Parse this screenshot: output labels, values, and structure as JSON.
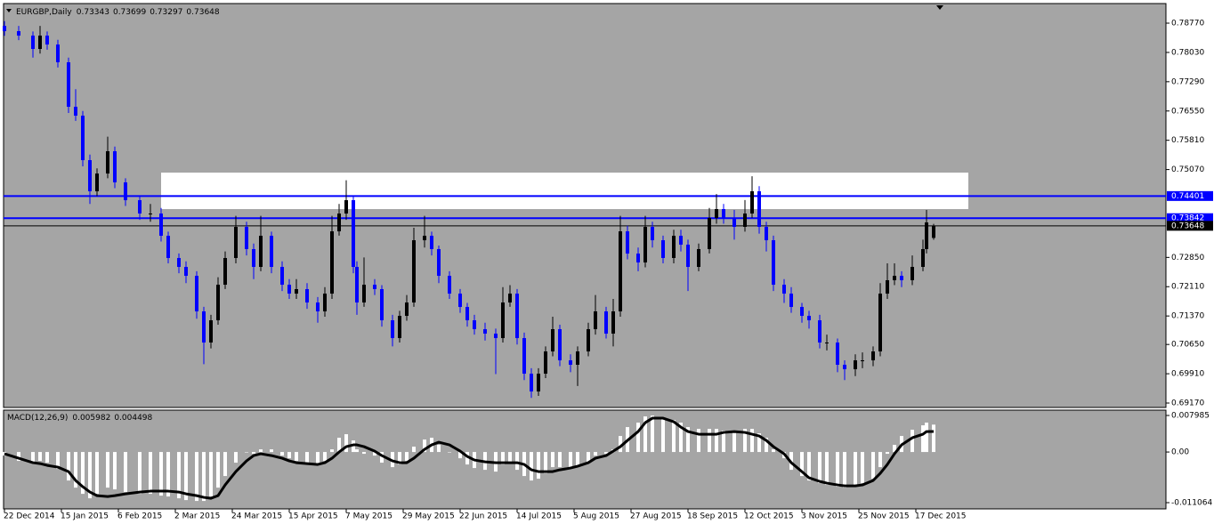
{
  "chart_data": [
    {
      "type": "candlestick",
      "title": "EURGBP,Daily",
      "x": [
        0,
        4,
        8,
        10,
        12,
        15,
        18,
        20,
        22,
        24,
        26,
        29,
        31,
        34,
        38,
        41,
        44,
        46,
        49,
        51,
        54,
        56,
        58,
        60,
        62,
        65,
        68,
        70,
        72,
        75,
        78,
        80,
        82,
        85,
        88,
        90,
        92,
        94,
        96,
        98,
        99,
        101,
        104,
        106,
        109,
        111,
        113,
        115,
        118,
        120,
        122,
        125,
        128,
        130,
        132,
        135,
        138,
        140,
        142,
        144,
        146,
        148,
        150,
        152,
        154,
        156,
        159,
        161,
        164,
        166,
        169,
        171,
        173,
        175,
        178,
        180,
        182,
        185,
        188,
        190,
        192,
        195,
        198,
        200,
        202,
        205,
        208,
        210,
        212,
        214,
        216,
        219,
        221,
        224,
        226,
        229,
        231,
        234,
        236,
        239,
        241,
        244,
        246,
        248,
        250,
        252,
        255,
        258,
        259,
        261
      ],
      "open": [
        0.787,
        0.78568,
        0.78455,
        0.78118,
        0.78455,
        0.7823,
        0.77781,
        0.76657,
        0.76432,
        0.75308,
        0.74521,
        0.7497,
        0.75533,
        0.74746,
        0.74296,
        0.73959,
        0.73959,
        0.73397,
        0.72835,
        0.7261,
        0.72385,
        0.71486,
        0.70699,
        0.71261,
        0.7216,
        0.72835,
        0.73622,
        0.7306,
        0.7261,
        0.73397,
        0.7261,
        0.7216,
        0.71935,
        0.72048,
        0.71711,
        0.71486,
        0.71935,
        0.73509,
        0.73959,
        0.74296,
        0.7261,
        0.71711,
        0.7216,
        0.72048,
        0.71261,
        0.70811,
        0.71373,
        0.71711,
        0.73284,
        0.73397,
        0.7306,
        0.72385,
        0.71935,
        0.71598,
        0.71261,
        0.71036,
        0.70924,
        0.70811,
        0.71711,
        0.71935,
        0.70811,
        0.69912,
        0.69462,
        0.69912,
        0.70474,
        0.71036,
        0.70249,
        0.70137,
        0.70474,
        0.71036,
        0.71486,
        0.70924,
        0.71486,
        0.73509,
        0.72947,
        0.72722,
        0.73622,
        0.73284,
        0.72835,
        0.73397,
        0.73172,
        0.7261,
        0.7306,
        0.73846,
        0.74071,
        0.73846,
        0.73622,
        0.73959,
        0.74521,
        0.73622,
        0.73284,
        0.7216,
        0.71935,
        0.71598,
        0.71373,
        0.71261,
        0.70699,
        0.70699,
        0.70137,
        0.70024,
        0.70249,
        0.70249,
        0.70474,
        0.71935,
        0.72273,
        0.72385,
        0.72273,
        0.7261,
        0.7306,
        0.73343
      ],
      "high": [
        0.7882,
        0.787,
        0.7856,
        0.787,
        0.7856,
        0.7835,
        0.779,
        0.771,
        0.7655,
        0.7545,
        0.751,
        0.759,
        0.7565,
        0.7485,
        0.744,
        0.742,
        0.741,
        0.735,
        0.7295,
        0.7275,
        0.725,
        0.716,
        0.714,
        0.7235,
        0.73,
        0.739,
        0.7375,
        0.732,
        0.739,
        0.735,
        0.7275,
        0.723,
        0.723,
        0.722,
        0.7185,
        0.721,
        0.739,
        0.742,
        0.748,
        0.744,
        0.7275,
        0.7285,
        0.723,
        0.7215,
        0.714,
        0.715,
        0.719,
        0.736,
        0.739,
        0.735,
        0.7315,
        0.725,
        0.7205,
        0.717,
        0.714,
        0.712,
        0.7105,
        0.721,
        0.7215,
        0.7205,
        0.7095,
        0.7005,
        0.7005,
        0.706,
        0.7135,
        0.7115,
        0.704,
        0.706,
        0.712,
        0.719,
        0.716,
        0.718,
        0.739,
        0.7365,
        0.731,
        0.739,
        0.7375,
        0.734,
        0.7355,
        0.7355,
        0.733,
        0.732,
        0.741,
        0.7445,
        0.742,
        0.7405,
        0.743,
        0.749,
        0.7465,
        0.7375,
        0.734,
        0.723,
        0.721,
        0.717,
        0.715,
        0.714,
        0.709,
        0.708,
        0.7025,
        0.704,
        0.7045,
        0.706,
        0.722,
        0.727,
        0.727,
        0.725,
        0.729,
        0.733,
        0.7405,
        0.73699
      ],
      "low": [
        0.7845,
        0.7834,
        0.779,
        0.78,
        0.781,
        0.7765,
        0.765,
        0.763,
        0.7515,
        0.742,
        0.744,
        0.7485,
        0.746,
        0.7415,
        0.738,
        0.7375,
        0.7325,
        0.727,
        0.7245,
        0.722,
        0.713,
        0.7015,
        0.7055,
        0.7115,
        0.7205,
        0.727,
        0.729,
        0.723,
        0.725,
        0.7245,
        0.72,
        0.718,
        0.718,
        0.7155,
        0.712,
        0.7135,
        0.718,
        0.734,
        0.738,
        0.7245,
        0.714,
        0.716,
        0.719,
        0.711,
        0.706,
        0.707,
        0.7125,
        0.716,
        0.731,
        0.729,
        0.722,
        0.718,
        0.7145,
        0.711,
        0.709,
        0.7075,
        0.699,
        0.707,
        0.716,
        0.7065,
        0.6975,
        0.693,
        0.6935,
        0.698,
        0.7035,
        0.701,
        0.6995,
        0.696,
        0.7035,
        0.709,
        0.708,
        0.706,
        0.7135,
        0.728,
        0.725,
        0.726,
        0.731,
        0.727,
        0.727,
        0.73,
        0.72,
        0.725,
        0.7295,
        0.737,
        0.737,
        0.733,
        0.735,
        0.7385,
        0.7345,
        0.73,
        0.72,
        0.717,
        0.7145,
        0.712,
        0.7105,
        0.7055,
        0.705,
        0.6995,
        0.6975,
        0.6985,
        0.7005,
        0.701,
        0.7035,
        0.718,
        0.7215,
        0.721,
        0.7215,
        0.725,
        0.7295,
        0.73297
      ],
      "close": [
        0.78568,
        0.78455,
        0.78118,
        0.78455,
        0.7823,
        0.77781,
        0.76657,
        0.76432,
        0.75308,
        0.74521,
        0.7497,
        0.75533,
        0.74746,
        0.74296,
        0.73959,
        0.73959,
        0.73397,
        0.72835,
        0.7261,
        0.72385,
        0.71486,
        0.70699,
        0.71261,
        0.7216,
        0.72835,
        0.73622,
        0.7306,
        0.7261,
        0.73397,
        0.7261,
        0.7216,
        0.71935,
        0.72048,
        0.71711,
        0.71486,
        0.71935,
        0.73509,
        0.73959,
        0.74296,
        0.7261,
        0.71711,
        0.7216,
        0.72048,
        0.71261,
        0.70811,
        0.71373,
        0.71711,
        0.73284,
        0.73397,
        0.7306,
        0.72385,
        0.71935,
        0.71598,
        0.71261,
        0.71036,
        0.70924,
        0.70811,
        0.71711,
        0.71935,
        0.70811,
        0.69912,
        0.69462,
        0.69912,
        0.70474,
        0.71036,
        0.70249,
        0.70137,
        0.70474,
        0.71036,
        0.71486,
        0.70924,
        0.71486,
        0.73509,
        0.72947,
        0.72722,
        0.73622,
        0.73284,
        0.72835,
        0.73397,
        0.73172,
        0.7261,
        0.7306,
        0.73846,
        0.74071,
        0.73846,
        0.73622,
        0.73959,
        0.74521,
        0.73622,
        0.73284,
        0.7216,
        0.71935,
        0.71598,
        0.71373,
        0.71261,
        0.70699,
        0.70699,
        0.70137,
        0.70024,
        0.70249,
        0.70249,
        0.70474,
        0.71935,
        0.72273,
        0.72385,
        0.72273,
        0.7261,
        0.7306,
        0.73734,
        0.73648
      ],
      "up_color": "#000000",
      "down_color": "#0000ff",
      "xlim": [
        -0.25,
        326.25
      ],
      "xticks": [
        {
          "value": 0,
          "label": "22 Dec 2014"
        },
        {
          "value": 16,
          "label": "15 Jan 2015"
        },
        {
          "value": 32,
          "label": "6 Feb 2015"
        },
        {
          "value": 48,
          "label": "2 Mar 2015"
        },
        {
          "value": 64,
          "label": "24 Mar 2015"
        },
        {
          "value": 80,
          "label": "15 Apr 2015"
        },
        {
          "value": 96,
          "label": "7 May 2015"
        },
        {
          "value": 112,
          "label": "29 May 2015"
        },
        {
          "value": 128,
          "label": "22 Jun 2015"
        },
        {
          "value": 144,
          "label": "14 Jul 2015"
        },
        {
          "value": 160,
          "label": "5 Aug 2015"
        },
        {
          "value": 176,
          "label": "27 Aug 2015"
        },
        {
          "value": 192,
          "label": "18 Sep 2015"
        },
        {
          "value": 208,
          "label": "12 Oct 2015"
        },
        {
          "value": 224,
          "label": "3 Nov 2015"
        },
        {
          "value": 240,
          "label": "25 Nov 2015"
        },
        {
          "value": 256,
          "label": "17 Dec 2015"
        }
      ],
      "ylim": [
        0.69058,
        0.79265
      ],
      "yticks": [
        {
          "value": 0.7877,
          "label": "0.78770"
        },
        {
          "value": 0.7803,
          "label": "0.78030"
        },
        {
          "value": 0.7729,
          "label": "0.77290"
        },
        {
          "value": 0.7655,
          "label": "0.76550"
        },
        {
          "value": 0.7581,
          "label": "0.75810"
        },
        {
          "value": 0.7507,
          "label": "0.75070"
        },
        {
          "value": 0.7285,
          "label": "0.72850"
        },
        {
          "value": 0.7211,
          "label": "0.72110"
        },
        {
          "value": 0.7137,
          "label": "0.71370"
        },
        {
          "value": 0.7065,
          "label": "0.70650"
        },
        {
          "value": 0.6991,
          "label": "0.69910"
        },
        {
          "value": 0.6917,
          "label": "0.69170"
        }
      ],
      "grid": false,
      "hlines": [
        {
          "value": 0.74401,
          "color": "#0000ff"
        },
        {
          "value": 0.73842,
          "color": "#0000ff"
        },
        {
          "value": 0.73648,
          "color": "#000000"
        }
      ],
      "zone": {
        "x": [
          44,
          270.75
        ],
        "y": [
          0.74071,
          0.74993
        ],
        "color": "#ffffff"
      }
    },
    {
      "type": "macd",
      "title": "MACD(12,26,9)",
      "series": [
        {
          "kind": "histogram",
          "color": "#ffffff",
          "values": [
            -0.00078,
            -0.00194,
            -0.00233,
            -0.00194,
            -0.00233,
            -0.00369,
            -0.00622,
            -0.00778,
            -0.00914,
            -0.01011,
            -0.00914,
            -0.00778,
            -0.00816,
            -0.00875,
            -0.00914,
            -0.00914,
            -0.00953,
            -0.00972,
            -0.01011,
            -0.0105,
            -0.01069,
            -0.01069,
            -0.00972,
            -0.00778,
            -0.00525,
            -0.00233,
            0,
            -0.00039,
            0.00058,
            0.00058,
            -0.00078,
            -0.00136,
            -0.00194,
            -0.00233,
            -0.00272,
            -0.00194,
            0.00058,
            0.00311,
            0.00389,
            0.00253,
            0.00058,
            -0.00039,
            -0.00078,
            -0.00233,
            -0.0033,
            -0.00272,
            -0.00194,
            0.00117,
            0.00272,
            0.00311,
            0.00156,
            0,
            -0.00136,
            -0.00272,
            -0.0035,
            -0.00389,
            -0.00428,
            -0.00272,
            -0.00233,
            -0.00389,
            -0.00525,
            -0.00622,
            -0.00583,
            -0.00467,
            -0.0033,
            -0.0033,
            -0.00369,
            -0.0033,
            -0.00233,
            -0.00078,
            -0.00039,
            0.00058,
            0.0035,
            0.00544,
            0.00642,
            0.00778,
            0.00797,
            0.00739,
            0.007,
            0.00642,
            0.00544,
            0.00505,
            0.00505,
            0.00505,
            0.00467,
            0.00447,
            0.00505,
            0.00505,
            0.00408,
            0.00311,
            0.00058,
            -0.00136,
            -0.00389,
            -0.00525,
            -0.00622,
            -0.0068,
            -0.00719,
            -0.00758,
            -0.00778,
            -0.00739,
            -0.0068,
            -0.00583,
            -0.0033,
            -0.00039,
            0.00156,
            0.0035,
            0.00486,
            0.00583,
            0.00642,
            0.005982
          ]
        },
        {
          "kind": "line",
          "color": "#000000",
          "values": [
            -0.00039,
            -0.00136,
            -0.00233,
            -0.00253,
            -0.00292,
            -0.0033,
            -0.00428,
            -0.00622,
            -0.00758,
            -0.00875,
            -0.00953,
            -0.00972,
            -0.00953,
            -0.00914,
            -0.00875,
            -0.00855,
            -0.00855,
            -0.00855,
            -0.00875,
            -0.00914,
            -0.00953,
            -0.00991,
            -0.01011,
            -0.00953,
            -0.00719,
            -0.00428,
            -0.00194,
            -0.00078,
            -0.00039,
            -0.00078,
            -0.00136,
            -0.00194,
            -0.00233,
            -0.00253,
            -0.00272,
            -0.00233,
            -0.00136,
            0,
            0.00117,
            0.00156,
            0.00156,
            0.00117,
            0.00019,
            -0.00078,
            -0.00194,
            -0.00233,
            -0.00233,
            -0.00136,
            0.00058,
            0.00156,
            0.00214,
            0.00156,
            0.00019,
            -0.00097,
            -0.00175,
            -0.00214,
            -0.00233,
            -0.00233,
            -0.00233,
            -0.00233,
            -0.00272,
            -0.00389,
            -0.00428,
            -0.00428,
            -0.00428,
            -0.00389,
            -0.0035,
            -0.00311,
            -0.00233,
            -0.00136,
            -0.00078,
            0.00019,
            0.00117,
            0.00253,
            0.00447,
            0.00642,
            0.00739,
            0.00739,
            0.00661,
            0.00544,
            0.00447,
            0.00389,
            0.00389,
            0.00389,
            0.00428,
            0.00447,
            0.00428,
            0.00389,
            0.0035,
            0.00253,
            0.00117,
            -0.00039,
            -0.00233,
            -0.00428,
            -0.00564,
            -0.00642,
            -0.0068,
            -0.00719,
            -0.00739,
            -0.00739,
            -0.00719,
            -0.00622,
            -0.00467,
            -0.00272,
            -0.00039,
            0.00156,
            0.00311,
            0.00389,
            0.00447,
            0.004498
          ]
        }
      ],
      "ylim": [
        -0.012425,
        0.009151
      ],
      "yticks": [
        0.007985,
        {
          "value": 0,
          "label": "0.00"
        },
        -0.011064
      ]
    }
  ]
}
